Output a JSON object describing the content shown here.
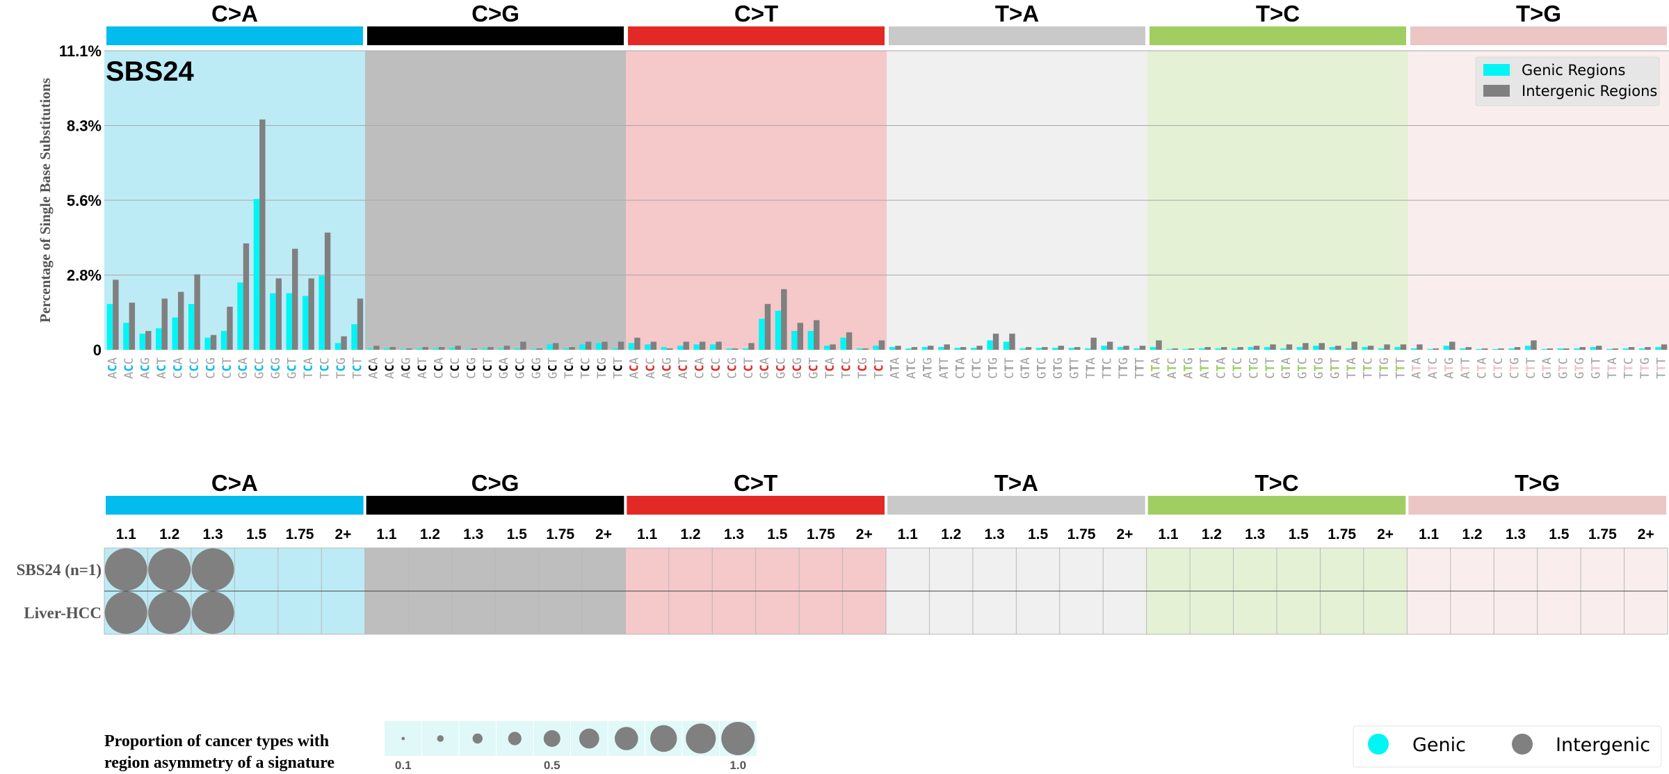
{
  "chart_data": [
    {
      "type": "bar",
      "title": "SBS24",
      "ylabel": "Percentage of Single Base Substitutions",
      "ylim": [
        0,
        11.1
      ],
      "yticks": [
        "0",
        "2.8%",
        "5.6%",
        "8.3%",
        "11.1%"
      ],
      "ytick_values": [
        0,
        2.775,
        5.55,
        8.325,
        11.1
      ],
      "grid": true,
      "legend_position": "top-right",
      "mutation_classes": [
        {
          "name": "C>A",
          "color": "#03bcee",
          "bg": "#bdebf5",
          "ctx_color": "#03bcee"
        },
        {
          "name": "C>G",
          "color": "#010101",
          "bg": "#bebebe",
          "ctx_color": "#010101"
        },
        {
          "name": "C>T",
          "color": "#e32926",
          "bg": "#f5c8ca",
          "ctx_color": "#e32926"
        },
        {
          "name": "T>A",
          "color": "#cac9c9",
          "bg": "#f0f0f0",
          "ctx_color": "#a0a0a0"
        },
        {
          "name": "T>C",
          "color": "#a1ce63",
          "bg": "#e5f1d5",
          "ctx_color": "#a1ce63"
        },
        {
          "name": "T>G",
          "color": "#ebc6c4",
          "bg": "#f9eeed",
          "ctx_color": "#ebc6c4"
        }
      ],
      "contexts": {
        "C": [
          "ACA",
          "ACC",
          "ACG",
          "ACT",
          "CCA",
          "CCC",
          "CCG",
          "CCT",
          "GCA",
          "GCC",
          "GCG",
          "GCT",
          "TCA",
          "TCC",
          "TCG",
          "TCT"
        ],
        "T": [
          "ATA",
          "ATC",
          "ATG",
          "ATT",
          "CTA",
          "CTC",
          "CTG",
          "CTT",
          "GTA",
          "GTC",
          "GTG",
          "GTT",
          "TTA",
          "TTC",
          "TTG",
          "TTT"
        ]
      },
      "series": [
        {
          "name": "Genic Regions",
          "color": "#00f5f5",
          "values": [
            1.7,
            1.0,
            0.6,
            0.8,
            1.2,
            1.7,
            0.45,
            0.7,
            2.5,
            5.6,
            2.1,
            2.1,
            2.0,
            2.75,
            0.25,
            0.95,
            0.05,
            0.05,
            0.03,
            0.05,
            0.05,
            0.07,
            0.03,
            0.05,
            0.05,
            0.05,
            0.03,
            0.2,
            0.05,
            0.2,
            0.25,
            0.05,
            0.25,
            0.2,
            0.1,
            0.15,
            0.2,
            0.2,
            0.05,
            0.05,
            1.15,
            1.45,
            0.7,
            0.7,
            0.15,
            0.45,
            0.05,
            0.15,
            0.1,
            0.05,
            0.1,
            0.1,
            0.07,
            0.07,
            0.35,
            0.3,
            0.05,
            0.07,
            0.07,
            0.07,
            0.05,
            0.15,
            0.1,
            0.05,
            0.1,
            0.03,
            0.03,
            0.05,
            0.05,
            0.05,
            0.1,
            0.1,
            0.05,
            0.1,
            0.15,
            0.1,
            0.05,
            0.1,
            0.05,
            0.1,
            0.05,
            0.03,
            0.15,
            0.05,
            0.03,
            0.03,
            0.05,
            0.15,
            0.03,
            0.05,
            0.05,
            0.1,
            0.03,
            0.05,
            0.05,
            0.1
          ]
        },
        {
          "name": "Intergenic Regions",
          "color": "#808080",
          "values": [
            2.6,
            1.75,
            0.7,
            1.9,
            2.15,
            2.8,
            0.55,
            1.6,
            3.95,
            8.55,
            2.65,
            3.75,
            2.65,
            4.35,
            0.5,
            1.9,
            0.15,
            0.1,
            0.05,
            0.1,
            0.1,
            0.15,
            0.05,
            0.1,
            0.15,
            0.3,
            0.05,
            0.25,
            0.1,
            0.3,
            0.3,
            0.3,
            0.45,
            0.3,
            0.05,
            0.3,
            0.3,
            0.3,
            0.05,
            0.25,
            1.7,
            2.25,
            1.0,
            1.1,
            0.2,
            0.65,
            0.05,
            0.35,
            0.15,
            0.1,
            0.15,
            0.2,
            0.1,
            0.15,
            0.6,
            0.6,
            0.1,
            0.1,
            0.15,
            0.1,
            0.45,
            0.3,
            0.15,
            0.15,
            0.35,
            0.05,
            0.05,
            0.1,
            0.1,
            0.1,
            0.15,
            0.2,
            0.2,
            0.25,
            0.25,
            0.15,
            0.3,
            0.15,
            0.2,
            0.2,
            0.2,
            0.05,
            0.3,
            0.1,
            0.05,
            0.05,
            0.1,
            0.35,
            0.05,
            0.05,
            0.1,
            0.15,
            0.05,
            0.1,
            0.1,
            0.2
          ]
        }
      ]
    },
    {
      "type": "heatmap",
      "headers": [
        "C>A",
        "C>G",
        "C>T",
        "T>A",
        "T>C",
        "T>G"
      ],
      "columns": [
        "1.1",
        "1.2",
        "1.3",
        "1.5",
        "1.75",
        "2+"
      ],
      "rows": [
        "SBS24 (n=1)",
        "Liver-HCC"
      ],
      "cell_values": [
        [
          1,
          1,
          1,
          0,
          0,
          0,
          0,
          0,
          0,
          0,
          0,
          0,
          0,
          0,
          0,
          0,
          0,
          0,
          0,
          0,
          0,
          0,
          0,
          0,
          0,
          0,
          0,
          0,
          0,
          0,
          0,
          0,
          0,
          0,
          0,
          0
        ],
        [
          1,
          1,
          1,
          0,
          0,
          0,
          0,
          0,
          0,
          0,
          0,
          0,
          0,
          0,
          0,
          0,
          0,
          0,
          0,
          0,
          0,
          0,
          0,
          0,
          0,
          0,
          0,
          0,
          0,
          0,
          0,
          0,
          0,
          0,
          0,
          0
        ]
      ],
      "cell_color": "#808080",
      "size_scale": {
        "label": "Proportion of cancer types with region asymmetry of a signature",
        "label_lines": [
          "Proportion of cancer types with",
          "region asymmetry of a signature"
        ],
        "values": [
          0.1,
          0.2,
          0.3,
          0.4,
          0.5,
          0.6,
          0.7,
          0.8,
          0.9,
          1.0
        ],
        "tick_labels": [
          "0.1",
          "0.5",
          "1.0"
        ]
      },
      "legend": [
        {
          "label": "Genic",
          "color": "#00f5f5"
        },
        {
          "label": "Intergenic",
          "color": "#808080"
        }
      ]
    }
  ]
}
